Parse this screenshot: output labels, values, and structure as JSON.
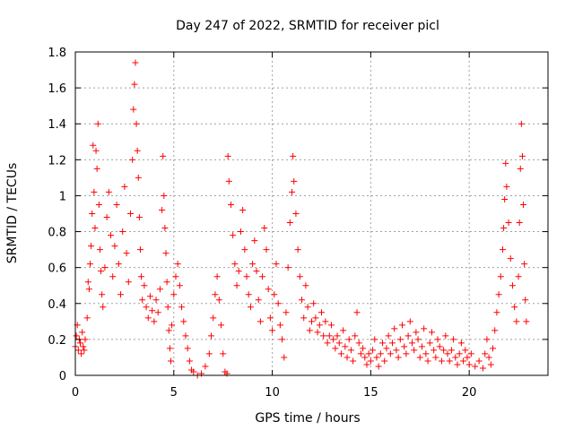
{
  "chart_data": {
    "type": "scatter",
    "title": "Day 247 of 2022, SRMTID for receiver picl",
    "xlabel": "GPS time / hours",
    "ylabel": "SRMTID / TECUs",
    "xlim": [
      0,
      24
    ],
    "ylim": [
      0,
      1.8
    ],
    "xticks": [
      0,
      5,
      10,
      15,
      20
    ],
    "xtick_labels": [
      "0",
      "5",
      "10",
      "15",
      "20"
    ],
    "yticks": [
      0,
      0.2,
      0.4,
      0.6,
      0.8,
      1.0,
      1.2,
      1.4,
      1.6,
      1.8
    ],
    "ytick_labels": [
      "0",
      "0.2",
      "0.4",
      "0.6",
      "0.8",
      "1",
      "1.2",
      "1.4",
      "1.6",
      "1.8"
    ],
    "grid": true,
    "marker": "+",
    "color": "#ff0000",
    "series": [
      {
        "name": "SRMTID",
        "points": [
          [
            0.0,
            0.16
          ],
          [
            0.05,
            0.22
          ],
          [
            0.1,
            0.28
          ],
          [
            0.15,
            0.14
          ],
          [
            0.2,
            0.2
          ],
          [
            0.25,
            0.18
          ],
          [
            0.3,
            0.12
          ],
          [
            0.35,
            0.24
          ],
          [
            0.4,
            0.16
          ],
          [
            0.45,
            0.14
          ],
          [
            0.5,
            0.2
          ],
          [
            0.6,
            0.32
          ],
          [
            0.65,
            0.52
          ],
          [
            0.7,
            0.48
          ],
          [
            0.75,
            0.62
          ],
          [
            0.8,
            0.72
          ],
          [
            0.85,
            0.9
          ],
          [
            0.9,
            1.28
          ],
          [
            0.95,
            1.02
          ],
          [
            1.0,
            0.82
          ],
          [
            1.05,
            1.25
          ],
          [
            1.1,
            1.15
          ],
          [
            1.15,
            1.4
          ],
          [
            1.2,
            0.95
          ],
          [
            1.25,
            0.7
          ],
          [
            1.3,
            0.58
          ],
          [
            1.35,
            0.45
          ],
          [
            1.4,
            0.38
          ],
          [
            1.5,
            0.6
          ],
          [
            1.6,
            0.88
          ],
          [
            1.7,
            1.02
          ],
          [
            1.8,
            0.78
          ],
          [
            1.9,
            0.55
          ],
          [
            2.0,
            0.72
          ],
          [
            2.1,
            0.95
          ],
          [
            2.2,
            0.62
          ],
          [
            2.3,
            0.45
          ],
          [
            2.4,
            0.8
          ],
          [
            2.5,
            1.05
          ],
          [
            2.6,
            0.68
          ],
          [
            2.7,
            0.52
          ],
          [
            2.8,
            0.9
          ],
          [
            2.9,
            1.2
          ],
          [
            2.95,
            1.48
          ],
          [
            3.0,
            1.62
          ],
          [
            3.05,
            1.74
          ],
          [
            3.1,
            1.4
          ],
          [
            3.15,
            1.25
          ],
          [
            3.2,
            1.1
          ],
          [
            3.25,
            0.88
          ],
          [
            3.3,
            0.7
          ],
          [
            3.35,
            0.55
          ],
          [
            3.4,
            0.42
          ],
          [
            3.5,
            0.5
          ],
          [
            3.6,
            0.38
          ],
          [
            3.7,
            0.32
          ],
          [
            3.8,
            0.44
          ],
          [
            3.9,
            0.36
          ],
          [
            4.0,
            0.3
          ],
          [
            4.1,
            0.42
          ],
          [
            4.2,
            0.35
          ],
          [
            4.3,
            0.48
          ],
          [
            4.4,
            0.92
          ],
          [
            4.45,
            1.22
          ],
          [
            4.5,
            1.0
          ],
          [
            4.55,
            0.82
          ],
          [
            4.6,
            0.68
          ],
          [
            4.65,
            0.52
          ],
          [
            4.7,
            0.38
          ],
          [
            4.75,
            0.25
          ],
          [
            4.8,
            0.15
          ],
          [
            4.85,
            0.08
          ],
          [
            4.9,
            0.28
          ],
          [
            5.0,
            0.45
          ],
          [
            5.1,
            0.55
          ],
          [
            5.2,
            0.62
          ],
          [
            5.3,
            0.5
          ],
          [
            5.4,
            0.38
          ],
          [
            5.5,
            0.3
          ],
          [
            5.6,
            0.22
          ],
          [
            5.7,
            0.15
          ],
          [
            5.8,
            0.08
          ],
          [
            5.9,
            0.03
          ],
          [
            6.0,
            0.02
          ],
          [
            6.2,
            0.0
          ],
          [
            6.4,
            0.01
          ],
          [
            6.6,
            0.05
          ],
          [
            6.8,
            0.12
          ],
          [
            6.9,
            0.22
          ],
          [
            7.0,
            0.32
          ],
          [
            7.1,
            0.45
          ],
          [
            7.2,
            0.55
          ],
          [
            7.3,
            0.42
          ],
          [
            7.4,
            0.28
          ],
          [
            7.5,
            0.12
          ],
          [
            7.6,
            0.02
          ],
          [
            7.7,
            0.01
          ],
          [
            7.75,
            1.22
          ],
          [
            7.8,
            1.08
          ],
          [
            7.9,
            0.95
          ],
          [
            8.0,
            0.78
          ],
          [
            8.1,
            0.62
          ],
          [
            8.2,
            0.5
          ],
          [
            8.3,
            0.58
          ],
          [
            8.4,
            0.8
          ],
          [
            8.5,
            0.92
          ],
          [
            8.6,
            0.7
          ],
          [
            8.7,
            0.55
          ],
          [
            8.8,
            0.45
          ],
          [
            8.9,
            0.38
          ],
          [
            9.0,
            0.62
          ],
          [
            9.1,
            0.75
          ],
          [
            9.2,
            0.58
          ],
          [
            9.3,
            0.42
          ],
          [
            9.4,
            0.3
          ],
          [
            9.5,
            0.55
          ],
          [
            9.6,
            0.82
          ],
          [
            9.7,
            0.7
          ],
          [
            9.8,
            0.48
          ],
          [
            9.9,
            0.32
          ],
          [
            10.0,
            0.25
          ],
          [
            10.1,
            0.45
          ],
          [
            10.2,
            0.62
          ],
          [
            10.3,
            0.4
          ],
          [
            10.4,
            0.28
          ],
          [
            10.5,
            0.2
          ],
          [
            10.6,
            0.1
          ],
          [
            10.7,
            0.35
          ],
          [
            10.8,
            0.6
          ],
          [
            10.9,
            0.85
          ],
          [
            11.0,
            1.02
          ],
          [
            11.05,
            1.22
          ],
          [
            11.1,
            1.08
          ],
          [
            11.2,
            0.9
          ],
          [
            11.3,
            0.7
          ],
          [
            11.4,
            0.55
          ],
          [
            11.5,
            0.42
          ],
          [
            11.6,
            0.32
          ],
          [
            11.7,
            0.5
          ],
          [
            11.8,
            0.38
          ],
          [
            11.9,
            0.25
          ],
          [
            12.0,
            0.3
          ],
          [
            12.1,
            0.4
          ],
          [
            12.2,
            0.32
          ],
          [
            12.3,
            0.24
          ],
          [
            12.4,
            0.28
          ],
          [
            12.5,
            0.35
          ],
          [
            12.6,
            0.22
          ],
          [
            12.7,
            0.3
          ],
          [
            12.8,
            0.18
          ],
          [
            12.9,
            0.22
          ],
          [
            13.0,
            0.28
          ],
          [
            13.1,
            0.2
          ],
          [
            13.2,
            0.15
          ],
          [
            13.3,
            0.22
          ],
          [
            13.4,
            0.18
          ],
          [
            13.5,
            0.12
          ],
          [
            13.6,
            0.25
          ],
          [
            13.7,
            0.16
          ],
          [
            13.8,
            0.1
          ],
          [
            13.9,
            0.2
          ],
          [
            14.0,
            0.14
          ],
          [
            14.1,
            0.08
          ],
          [
            14.2,
            0.22
          ],
          [
            14.3,
            0.35
          ],
          [
            14.4,
            0.18
          ],
          [
            14.5,
            0.12
          ],
          [
            14.6,
            0.15
          ],
          [
            14.7,
            0.1
          ],
          [
            14.8,
            0.06
          ],
          [
            14.9,
            0.12
          ],
          [
            15.0,
            0.08
          ],
          [
            15.1,
            0.14
          ],
          [
            15.2,
            0.2
          ],
          [
            15.3,
            0.1
          ],
          [
            15.4,
            0.05
          ],
          [
            15.5,
            0.12
          ],
          [
            15.6,
            0.18
          ],
          [
            15.7,
            0.08
          ],
          [
            15.8,
            0.15
          ],
          [
            15.9,
            0.22
          ],
          [
            16.0,
            0.12
          ],
          [
            16.1,
            0.18
          ],
          [
            16.2,
            0.26
          ],
          [
            16.3,
            0.14
          ],
          [
            16.4,
            0.1
          ],
          [
            16.5,
            0.2
          ],
          [
            16.6,
            0.28
          ],
          [
            16.7,
            0.16
          ],
          [
            16.8,
            0.12
          ],
          [
            16.9,
            0.22
          ],
          [
            17.0,
            0.3
          ],
          [
            17.1,
            0.18
          ],
          [
            17.2,
            0.14
          ],
          [
            17.3,
            0.24
          ],
          [
            17.4,
            0.2
          ],
          [
            17.5,
            0.1
          ],
          [
            17.6,
            0.16
          ],
          [
            17.7,
            0.26
          ],
          [
            17.8,
            0.12
          ],
          [
            17.9,
            0.08
          ],
          [
            18.0,
            0.18
          ],
          [
            18.1,
            0.24
          ],
          [
            18.2,
            0.14
          ],
          [
            18.3,
            0.1
          ],
          [
            18.4,
            0.2
          ],
          [
            18.5,
            0.16
          ],
          [
            18.6,
            0.08
          ],
          [
            18.7,
            0.14
          ],
          [
            18.8,
            0.22
          ],
          [
            18.9,
            0.12
          ],
          [
            19.0,
            0.08
          ],
          [
            19.1,
            0.14
          ],
          [
            19.2,
            0.2
          ],
          [
            19.3,
            0.1
          ],
          [
            19.4,
            0.06
          ],
          [
            19.5,
            0.12
          ],
          [
            19.6,
            0.18
          ],
          [
            19.7,
            0.08
          ],
          [
            19.8,
            0.14
          ],
          [
            19.9,
            0.1
          ],
          [
            20.0,
            0.06
          ],
          [
            20.1,
            0.12
          ],
          [
            20.3,
            0.05
          ],
          [
            20.5,
            0.08
          ],
          [
            20.7,
            0.04
          ],
          [
            20.8,
            0.12
          ],
          [
            20.9,
            0.2
          ],
          [
            21.0,
            0.1
          ],
          [
            21.1,
            0.06
          ],
          [
            21.2,
            0.15
          ],
          [
            21.3,
            0.25
          ],
          [
            21.4,
            0.35
          ],
          [
            21.5,
            0.45
          ],
          [
            21.6,
            0.55
          ],
          [
            21.7,
            0.7
          ],
          [
            21.75,
            0.82
          ],
          [
            21.8,
            0.98
          ],
          [
            21.85,
            1.18
          ],
          [
            21.9,
            1.05
          ],
          [
            22.0,
            0.85
          ],
          [
            22.1,
            0.65
          ],
          [
            22.2,
            0.5
          ],
          [
            22.3,
            0.38
          ],
          [
            22.4,
            0.3
          ],
          [
            22.5,
            0.55
          ],
          [
            22.55,
            0.85
          ],
          [
            22.6,
            1.15
          ],
          [
            22.65,
            1.4
          ],
          [
            22.7,
            1.22
          ],
          [
            22.75,
            0.95
          ],
          [
            22.8,
            0.62
          ],
          [
            22.85,
            0.42
          ],
          [
            22.9,
            0.3
          ]
        ]
      }
    ]
  }
}
